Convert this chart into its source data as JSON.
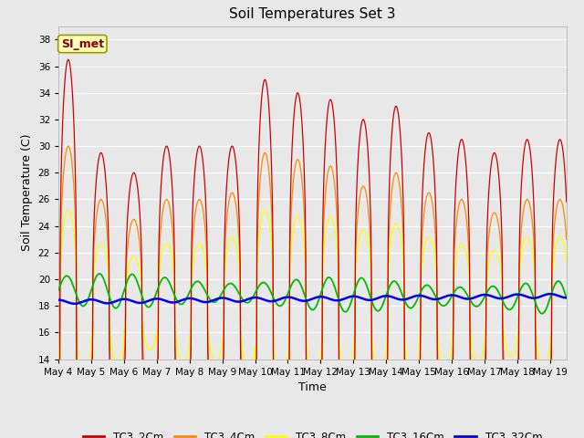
{
  "title": "Soil Temperatures Set 3",
  "xlabel": "Time",
  "ylabel": "Soil Temperature (C)",
  "ylim": [
    14,
    39
  ],
  "yticks": [
    14,
    16,
    18,
    20,
    22,
    24,
    26,
    28,
    30,
    32,
    34,
    36,
    38
  ],
  "xlim_days": [
    0,
    15.5
  ],
  "x_tick_labels": [
    "May 4",
    "May 5",
    "May 6",
    "May 7",
    "May 8",
    "May 9",
    "May 10",
    "May 11",
    "May 12",
    "May 13",
    "May 14",
    "May 15",
    "May 16",
    "May 17",
    "May 18",
    "May 19"
  ],
  "x_tick_positions": [
    0,
    1,
    2,
    3,
    4,
    5,
    6,
    7,
    8,
    9,
    10,
    11,
    12,
    13,
    14,
    15
  ],
  "colors": {
    "TC3_2Cm": "#cc0000",
    "TC3_4Cm": "#ff8800",
    "TC3_8Cm": "#ffff00",
    "TC3_16Cm": "#00bb00",
    "TC3_32Cm": "#0000ee"
  },
  "background_color": "#e8e8e8",
  "annotation_text": "SI_met",
  "annotation_color": "#880000",
  "annotation_bg": "#ffffbb",
  "annotation_border": "#999900"
}
